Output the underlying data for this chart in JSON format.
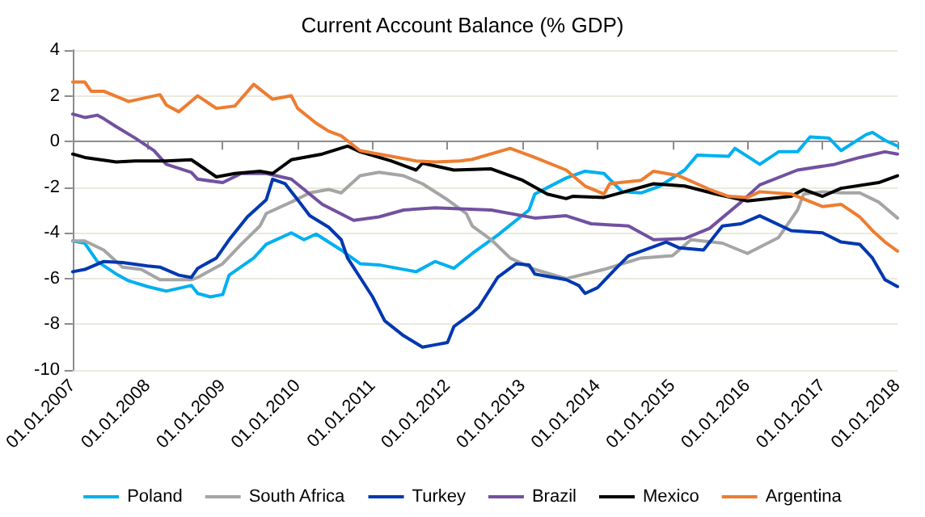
{
  "chart_data": {
    "type": "line",
    "title": "Current Account Balance (% GDP)",
    "xlim": [
      "2007-01-01",
      "2018-01-01"
    ],
    "xticks": [
      {
        "value": "2007-01-01",
        "label": "01.01.2007"
      },
      {
        "value": "2008-01-01",
        "label": "01.01.2008"
      },
      {
        "value": "2009-01-01",
        "label": "01.01.2009"
      },
      {
        "value": "2010-01-01",
        "label": "01.01.2010"
      },
      {
        "value": "2011-01-01",
        "label": "01.01.2011"
      },
      {
        "value": "2012-01-01",
        "label": "01.01.2012"
      },
      {
        "value": "2013-01-01",
        "label": "01.01.2013"
      },
      {
        "value": "2014-01-01",
        "label": "01.01.2014"
      },
      {
        "value": "2015-01-01",
        "label": "01.01.2015"
      },
      {
        "value": "2016-01-01",
        "label": "01.01.2016"
      },
      {
        "value": "2017-01-01",
        "label": "01.01.2017"
      },
      {
        "value": "2018-01-01",
        "label": "01.01.2018"
      }
    ],
    "ylim": [
      -10,
      4
    ],
    "yticks": [
      -10,
      -8,
      -6,
      -4,
      -2,
      0,
      2,
      4
    ],
    "grid": "y",
    "legend": "bottom",
    "marker": "none",
    "line_style": "solid",
    "series": [
      {
        "name": "Poland",
        "color": "#00b0f0",
        "x": [
          "2007-01",
          "2007-03",
          "2007-05",
          "2007-08",
          "2007-10",
          "2008-01",
          "2008-04",
          "2008-08",
          "2008-09",
          "2008-11",
          "2009-01",
          "2009-02",
          "2009-06",
          "2009-08",
          "2009-12",
          "2010-02",
          "2010-04",
          "2010-08",
          "2010-11",
          "2011-02",
          "2011-08",
          "2011-11",
          "2012-02",
          "2012-05",
          "2012-09",
          "2013-02",
          "2013-03",
          "2013-08",
          "2013-11",
          "2014-02",
          "2014-05",
          "2014-08",
          "2014-11",
          "2015-03",
          "2015-05",
          "2015-10",
          "2015-11",
          "2016-03",
          "2016-06",
          "2016-09",
          "2016-11",
          "2017-02",
          "2017-04",
          "2017-08",
          "2017-09",
          "2017-11",
          "2018-01"
        ],
        "values": [
          -4.35,
          -4.45,
          -5.25,
          -5.8,
          -6.1,
          -6.35,
          -6.55,
          -6.3,
          -6.65,
          -6.8,
          -6.7,
          -5.85,
          -5.1,
          -4.5,
          -4.0,
          -4.3,
          -4.05,
          -4.75,
          -5.35,
          -5.4,
          -5.7,
          -5.25,
          -5.55,
          -4.9,
          -4.1,
          -3.0,
          -2.3,
          -1.6,
          -1.3,
          -1.4,
          -2.2,
          -2.25,
          -1.95,
          -1.25,
          -0.6,
          -0.65,
          -0.3,
          -1.0,
          -0.45,
          -0.45,
          0.2,
          0.15,
          -0.4,
          0.3,
          0.4,
          0.05,
          -0.2
        ]
      },
      {
        "name": "South Africa",
        "color": "#a5a5a5",
        "x": [
          "2007-01",
          "2007-03",
          "2007-06",
          "2007-09",
          "2007-12",
          "2008-03",
          "2008-08",
          "2008-09",
          "2009-01",
          "2009-04",
          "2009-07",
          "2009-08",
          "2009-12",
          "2010-03",
          "2010-06",
          "2010-08",
          "2010-11",
          "2011-02",
          "2011-06",
          "2011-09",
          "2012-01",
          "2012-04",
          "2012-05",
          "2012-08",
          "2012-11",
          "2013-03",
          "2013-08",
          "2014-02",
          "2014-08",
          "2015-01",
          "2015-04",
          "2015-09",
          "2016-01",
          "2016-06",
          "2016-09",
          "2016-10",
          "2017-01",
          "2017-04",
          "2017-07",
          "2017-10",
          "2018-01"
        ],
        "values": [
          -4.35,
          -4.35,
          -4.75,
          -5.5,
          -5.6,
          -6.05,
          -6.05,
          -5.95,
          -5.35,
          -4.5,
          -3.7,
          -3.15,
          -2.65,
          -2.25,
          -2.1,
          -2.25,
          -1.5,
          -1.35,
          -1.5,
          -1.85,
          -2.55,
          -3.15,
          -3.7,
          -4.3,
          -5.1,
          -5.6,
          -6.0,
          -5.6,
          -5.1,
          -5.0,
          -4.3,
          -4.45,
          -4.9,
          -4.2,
          -3.0,
          -2.3,
          -2.2,
          -2.25,
          -2.25,
          -2.65,
          -3.35
        ]
      },
      {
        "name": "Turkey",
        "color": "#0038b0",
        "x": [
          "2007-01",
          "2007-03",
          "2007-06",
          "2007-09",
          "2008-01",
          "2008-03",
          "2008-06",
          "2008-08",
          "2008-09",
          "2008-12",
          "2009-02",
          "2009-05",
          "2009-08",
          "2009-09",
          "2009-11",
          "2010-01",
          "2010-03",
          "2010-06",
          "2010-08",
          "2010-09",
          "2011-01",
          "2011-03",
          "2011-06",
          "2011-09",
          "2011-11",
          "2012-01",
          "2012-02",
          "2012-05",
          "2012-06",
          "2012-08",
          "2012-09",
          "2012-12",
          "2013-02",
          "2013-03",
          "2013-08",
          "2013-10",
          "2013-11",
          "2014-01",
          "2014-04",
          "2014-06",
          "2014-09",
          "2014-12",
          "2015-02",
          "2015-06",
          "2015-09",
          "2015-12",
          "2016-03",
          "2016-08",
          "2017-01",
          "2017-04",
          "2017-07",
          "2017-09",
          "2017-11",
          "2018-01"
        ],
        "values": [
          -5.7,
          -5.6,
          -5.25,
          -5.3,
          -5.45,
          -5.5,
          -5.85,
          -5.95,
          -5.55,
          -5.1,
          -4.3,
          -3.3,
          -2.55,
          -1.65,
          -1.85,
          -2.55,
          -3.25,
          -3.75,
          -4.3,
          -5.1,
          -6.8,
          -7.85,
          -8.5,
          -9.0,
          -8.9,
          -8.8,
          -8.1,
          -7.5,
          -7.25,
          -6.4,
          -5.95,
          -5.35,
          -5.4,
          -5.8,
          -6.05,
          -6.3,
          -6.65,
          -6.4,
          -5.55,
          -5.0,
          -4.7,
          -4.4,
          -4.65,
          -4.75,
          -3.7,
          -3.6,
          -3.25,
          -3.9,
          -4.0,
          -4.4,
          -4.5,
          -5.1,
          -6.05,
          -6.35
        ]
      },
      {
        "name": "Brazil",
        "color": "#7251a0",
        "x": [
          "2007-01",
          "2007-03",
          "2007-05",
          "2007-06",
          "2007-08",
          "2007-11",
          "2008-02",
          "2008-04",
          "2008-08",
          "2008-09",
          "2009-01",
          "2009-04",
          "2009-08",
          "2009-12",
          "2010-02",
          "2010-05",
          "2010-10",
          "2011-02",
          "2011-06",
          "2011-11",
          "2012-03",
          "2012-08",
          "2013-03",
          "2013-08",
          "2013-12",
          "2014-06",
          "2014-10",
          "2015-03",
          "2015-07",
          "2015-12",
          "2016-03",
          "2016-09",
          "2017-03",
          "2017-07",
          "2017-11",
          "2018-01"
        ],
        "values": [
          1.2,
          1.05,
          1.15,
          1.0,
          0.65,
          0.15,
          -0.4,
          -1.0,
          -1.35,
          -1.65,
          -1.8,
          -1.4,
          -1.4,
          -1.65,
          -2.1,
          -2.75,
          -3.45,
          -3.3,
          -3.0,
          -2.9,
          -2.95,
          -3.0,
          -3.35,
          -3.25,
          -3.6,
          -3.7,
          -4.3,
          -4.25,
          -3.8,
          -2.65,
          -1.9,
          -1.25,
          -1.0,
          -0.7,
          -0.45,
          -0.55
        ]
      },
      {
        "name": "Mexico",
        "color": "#000000",
        "x": [
          "2007-01",
          "2007-03",
          "2007-08",
          "2007-11",
          "2008-04",
          "2008-08",
          "2008-12",
          "2009-03",
          "2009-07",
          "2009-09",
          "2009-12",
          "2010-05",
          "2010-09",
          "2010-11",
          "2011-04",
          "2011-08",
          "2011-09",
          "2012-02",
          "2012-08",
          "2013-01",
          "2013-05",
          "2013-08",
          "2013-09",
          "2014-02",
          "2014-10",
          "2015-03",
          "2015-08",
          "2016-01",
          "2016-08",
          "2016-10",
          "2017-01",
          "2017-04",
          "2017-10",
          "2018-01"
        ],
        "values": [
          -0.55,
          -0.7,
          -0.9,
          -0.85,
          -0.85,
          -0.8,
          -1.55,
          -1.4,
          -1.3,
          -1.4,
          -0.8,
          -0.55,
          -0.2,
          -0.45,
          -0.85,
          -1.25,
          -0.95,
          -1.25,
          -1.2,
          -1.7,
          -2.3,
          -2.5,
          -2.4,
          -2.45,
          -1.85,
          -1.95,
          -2.3,
          -2.6,
          -2.4,
          -2.1,
          -2.4,
          -2.05,
          -1.8,
          -1.5
        ]
      },
      {
        "name": "Argentina",
        "color": "#ed7d31",
        "x": [
          "2007-01",
          "2007-03",
          "2007-04",
          "2007-06",
          "2007-10",
          "2008-03",
          "2008-04",
          "2008-06",
          "2008-09",
          "2008-12",
          "2009-03",
          "2009-06",
          "2009-09",
          "2009-12",
          "2010-01",
          "2010-04",
          "2010-06",
          "2010-08",
          "2010-11",
          "2011-02",
          "2011-08",
          "2011-11",
          "2012-03",
          "2012-05",
          "2012-11",
          "2013-03",
          "2013-08",
          "2013-11",
          "2014-02",
          "2014-03",
          "2014-08",
          "2014-10",
          "2015-02",
          "2015-07",
          "2015-10",
          "2016-01",
          "2016-03",
          "2016-08",
          "2017-01",
          "2017-04",
          "2017-07",
          "2017-09",
          "2017-11",
          "2018-01"
        ],
        "values": [
          2.6,
          2.6,
          2.2,
          2.2,
          1.75,
          2.05,
          1.6,
          1.3,
          2.0,
          1.45,
          1.55,
          2.5,
          1.85,
          2.0,
          1.45,
          0.8,
          0.45,
          0.25,
          -0.4,
          -0.55,
          -0.85,
          -0.9,
          -0.85,
          -0.78,
          -0.3,
          -0.7,
          -1.25,
          -1.95,
          -2.3,
          -1.85,
          -1.7,
          -1.3,
          -1.5,
          -2.1,
          -2.4,
          -2.45,
          -2.2,
          -2.3,
          -2.85,
          -2.75,
          -3.3,
          -3.9,
          -4.4,
          -4.8
        ]
      }
    ]
  }
}
